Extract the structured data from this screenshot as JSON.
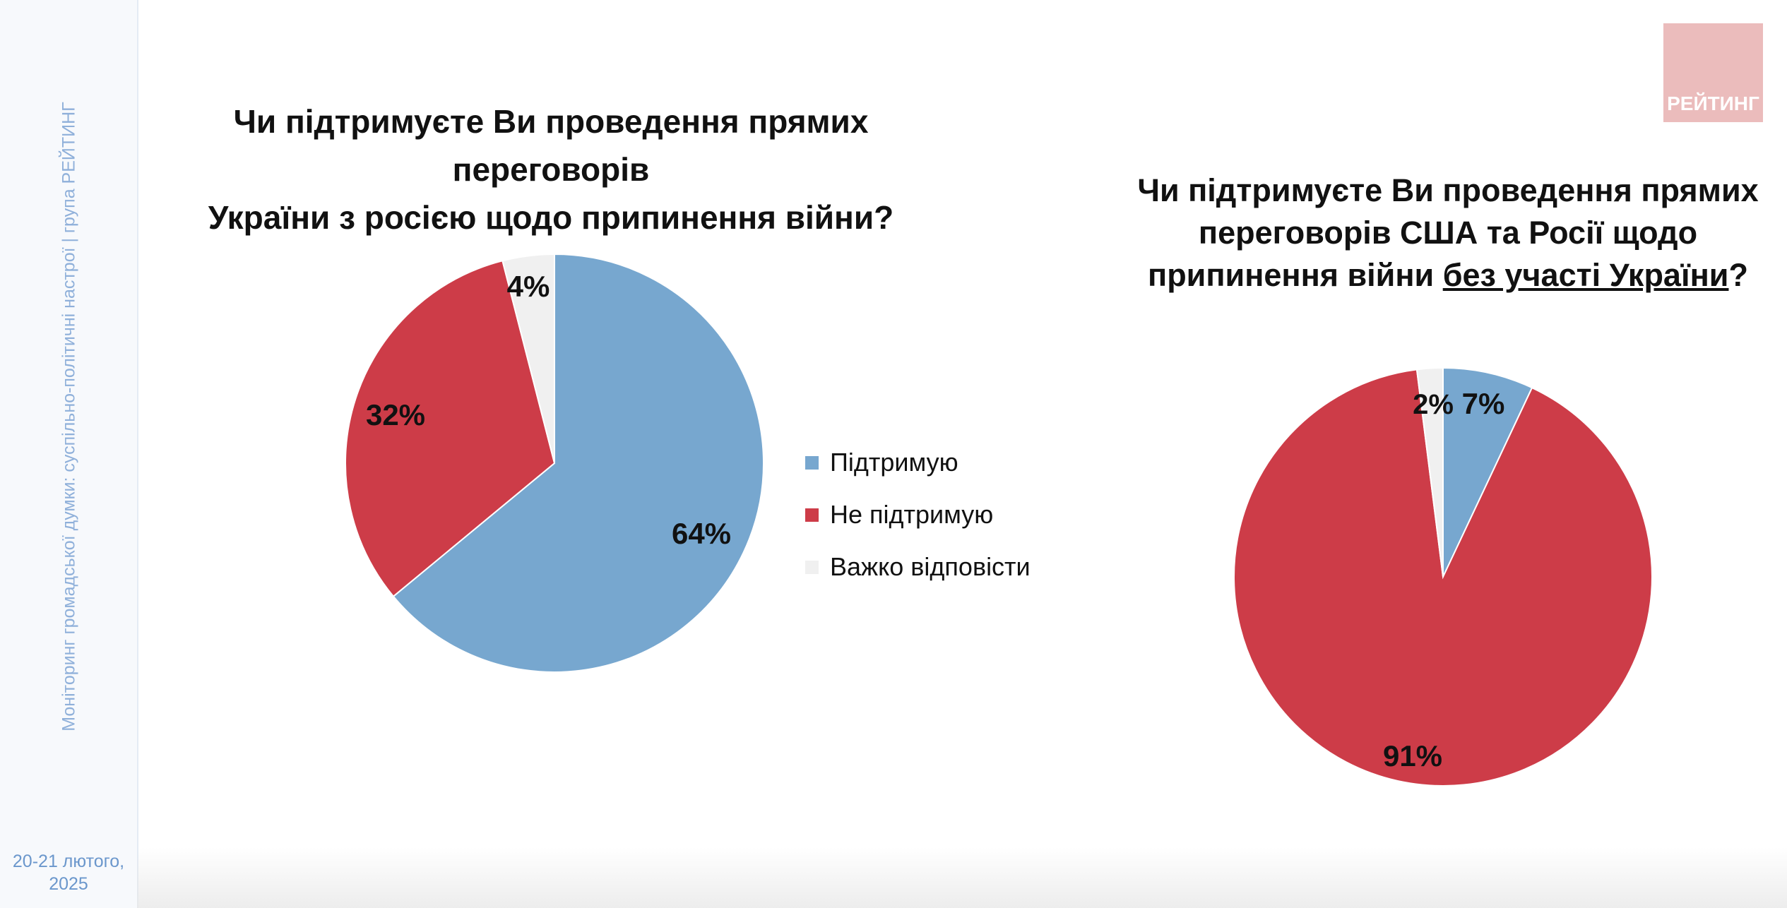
{
  "sidebar": {
    "caption": "Моніторинг громадської думки: суспільно-політичні настрої | група РЕЙТИНГ",
    "date_line1": "20-21 лютого,",
    "date_line2": "2025"
  },
  "logo": {
    "text": "РЕЙТИНГ",
    "color": "#ebbcbc"
  },
  "left": {
    "title_line1": "Чи підтримуєте Ви проведення прямих переговорів",
    "title_line2": "України з росією щодо припинення війни?"
  },
  "right": {
    "title_line1": "Чи підтримуєте Ви проведення прямих",
    "title_line2": "переговорів США та Росії щодо",
    "title_line3_a": "припинення війни ",
    "title_line3_u": "без участі України",
    "title_line3_b": "?"
  },
  "legend": [
    {
      "label": "Підтримую",
      "color": "#77a7cf"
    },
    {
      "label": "Не підтримую",
      "color": "#cd3c48"
    },
    {
      "label": "Важко відповісти",
      "color": "#f0f0f0"
    }
  ],
  "chart_data": [
    {
      "type": "pie",
      "title": "Чи підтримуєте Ви проведення прямих переговорів України з росією щодо припинення війни?",
      "categories": [
        "Підтримую",
        "Не підтримую",
        "Важко відповісти"
      ],
      "values": [
        64,
        32,
        4
      ],
      "labels": [
        "64%",
        "32%",
        "4%"
      ],
      "colors": [
        "#77a7cf",
        "#cd3c48",
        "#f0f0f0"
      ],
      "legend": "right"
    },
    {
      "type": "pie",
      "title": "Чи підтримуєте Ви проведення прямих переговорів США та Росії щодо припинення війни без участі України?",
      "categories": [
        "Підтримую",
        "Не підтримую",
        "Важко відповісти"
      ],
      "values": [
        7,
        91,
        2
      ],
      "labels": [
        "7%",
        "91%",
        "2%"
      ],
      "colors": [
        "#77a7cf",
        "#cd3c48",
        "#f0f0f0"
      ]
    }
  ]
}
